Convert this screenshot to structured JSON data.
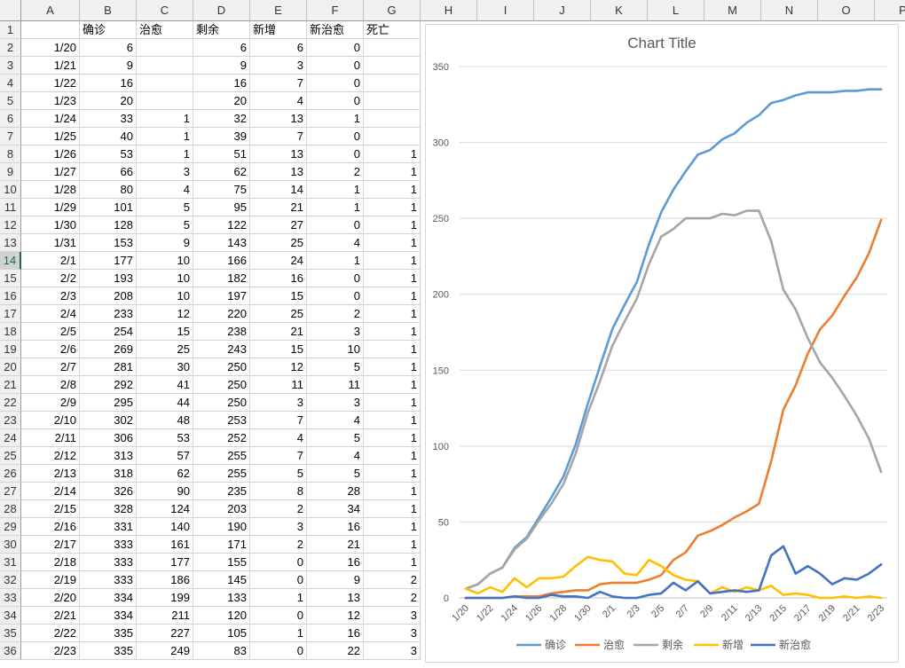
{
  "columns": [
    "A",
    "B",
    "C",
    "D",
    "E",
    "F",
    "G",
    "H",
    "I",
    "J",
    "K",
    "L",
    "M",
    "N",
    "O",
    "P"
  ],
  "selected_row": 14,
  "headers": {
    "A": "",
    "B": "确诊",
    "C": "治愈",
    "D": "剩余",
    "E": "新增",
    "F": "新治愈",
    "G": "死亡"
  },
  "rows": [
    {
      "date": "1/20",
      "b": "6",
      "c": "",
      "d": "6",
      "e": "6",
      "f": "0",
      "g": ""
    },
    {
      "date": "1/21",
      "b": "9",
      "c": "",
      "d": "9",
      "e": "3",
      "f": "0",
      "g": ""
    },
    {
      "date": "1/22",
      "b": "16",
      "c": "",
      "d": "16",
      "e": "7",
      "f": "0",
      "g": ""
    },
    {
      "date": "1/23",
      "b": "20",
      "c": "",
      "d": "20",
      "e": "4",
      "f": "0",
      "g": ""
    },
    {
      "date": "1/24",
      "b": "33",
      "c": "1",
      "d": "32",
      "e": "13",
      "f": "1",
      "g": ""
    },
    {
      "date": "1/25",
      "b": "40",
      "c": "1",
      "d": "39",
      "e": "7",
      "f": "0",
      "g": ""
    },
    {
      "date": "1/26",
      "b": "53",
      "c": "1",
      "d": "51",
      "e": "13",
      "f": "0",
      "g": "1"
    },
    {
      "date": "1/27",
      "b": "66",
      "c": "3",
      "d": "62",
      "e": "13",
      "f": "2",
      "g": "1"
    },
    {
      "date": "1/28",
      "b": "80",
      "c": "4",
      "d": "75",
      "e": "14",
      "f": "1",
      "g": "1"
    },
    {
      "date": "1/29",
      "b": "101",
      "c": "5",
      "d": "95",
      "e": "21",
      "f": "1",
      "g": "1"
    },
    {
      "date": "1/30",
      "b": "128",
      "c": "5",
      "d": "122",
      "e": "27",
      "f": "0",
      "g": "1"
    },
    {
      "date": "1/31",
      "b": "153",
      "c": "9",
      "d": "143",
      "e": "25",
      "f": "4",
      "g": "1"
    },
    {
      "date": "2/1",
      "b": "177",
      "c": "10",
      "d": "166",
      "e": "24",
      "f": "1",
      "g": "1"
    },
    {
      "date": "2/2",
      "b": "193",
      "c": "10",
      "d": "182",
      "e": "16",
      "f": "0",
      "g": "1"
    },
    {
      "date": "2/3",
      "b": "208",
      "c": "10",
      "d": "197",
      "e": "15",
      "f": "0",
      "g": "1"
    },
    {
      "date": "2/4",
      "b": "233",
      "c": "12",
      "d": "220",
      "e": "25",
      "f": "2",
      "g": "1"
    },
    {
      "date": "2/5",
      "b": "254",
      "c": "15",
      "d": "238",
      "e": "21",
      "f": "3",
      "g": "1"
    },
    {
      "date": "2/6",
      "b": "269",
      "c": "25",
      "d": "243",
      "e": "15",
      "f": "10",
      "g": "1"
    },
    {
      "date": "2/7",
      "b": "281",
      "c": "30",
      "d": "250",
      "e": "12",
      "f": "5",
      "g": "1"
    },
    {
      "date": "2/8",
      "b": "292",
      "c": "41",
      "d": "250",
      "e": "11",
      "f": "11",
      "g": "1"
    },
    {
      "date": "2/9",
      "b": "295",
      "c": "44",
      "d": "250",
      "e": "3",
      "f": "3",
      "g": "1"
    },
    {
      "date": "2/10",
      "b": "302",
      "c": "48",
      "d": "253",
      "e": "7",
      "f": "4",
      "g": "1"
    },
    {
      "date": "2/11",
      "b": "306",
      "c": "53",
      "d": "252",
      "e": "4",
      "f": "5",
      "g": "1"
    },
    {
      "date": "2/12",
      "b": "313",
      "c": "57",
      "d": "255",
      "e": "7",
      "f": "4",
      "g": "1"
    },
    {
      "date": "2/13",
      "b": "318",
      "c": "62",
      "d": "255",
      "e": "5",
      "f": "5",
      "g": "1"
    },
    {
      "date": "2/14",
      "b": "326",
      "c": "90",
      "d": "235",
      "e": "8",
      "f": "28",
      "g": "1"
    },
    {
      "date": "2/15",
      "b": "328",
      "c": "124",
      "d": "203",
      "e": "2",
      "f": "34",
      "g": "1"
    },
    {
      "date": "2/16",
      "b": "331",
      "c": "140",
      "d": "190",
      "e": "3",
      "f": "16",
      "g": "1"
    },
    {
      "date": "2/17",
      "b": "333",
      "c": "161",
      "d": "171",
      "e": "2",
      "f": "21",
      "g": "1"
    },
    {
      "date": "2/18",
      "b": "333",
      "c": "177",
      "d": "155",
      "e": "0",
      "f": "16",
      "g": "1"
    },
    {
      "date": "2/19",
      "b": "333",
      "c": "186",
      "d": "145",
      "e": "0",
      "f": "9",
      "g": "2"
    },
    {
      "date": "2/20",
      "b": "334",
      "c": "199",
      "d": "133",
      "e": "1",
      "f": "13",
      "g": "2"
    },
    {
      "date": "2/21",
      "b": "334",
      "c": "211",
      "d": "120",
      "e": "0",
      "f": "12",
      "g": "3"
    },
    {
      "date": "2/22",
      "b": "335",
      "c": "227",
      "d": "105",
      "e": "1",
      "f": "16",
      "g": "3"
    },
    {
      "date": "2/23",
      "b": "335",
      "c": "249",
      "d": "83",
      "e": "0",
      "f": "22",
      "g": "3"
    }
  ],
  "chart_data": {
    "type": "line",
    "title": "Chart Title",
    "x": [
      "1/20",
      "1/21",
      "1/22",
      "1/23",
      "1/24",
      "1/25",
      "1/26",
      "1/27",
      "1/28",
      "1/29",
      "1/30",
      "1/31",
      "2/1",
      "2/2",
      "2/3",
      "2/4",
      "2/5",
      "2/6",
      "2/7",
      "2/8",
      "2/9",
      "2/10",
      "2/11",
      "2/12",
      "2/13",
      "2/14",
      "2/15",
      "2/16",
      "2/17",
      "2/18",
      "2/19",
      "2/20",
      "2/21",
      "2/22",
      "2/23"
    ],
    "x_tick_labels": [
      "1/20",
      "1/22",
      "1/24",
      "1/26",
      "1/28",
      "1/30",
      "2/1",
      "2/3",
      "2/5",
      "2/7",
      "2/9",
      "2/11",
      "2/13",
      "2/15",
      "2/17",
      "2/19",
      "2/21",
      "2/23"
    ],
    "ylim": [
      0,
      350
    ],
    "y_ticks": [
      0,
      50,
      100,
      150,
      200,
      250,
      300,
      350
    ],
    "grid": true,
    "legend_position": "bottom",
    "series": [
      {
        "name": "确诊",
        "color": "#5b9bd5",
        "values": [
          6,
          9,
          16,
          20,
          33,
          40,
          53,
          66,
          80,
          101,
          128,
          153,
          177,
          193,
          208,
          233,
          254,
          269,
          281,
          292,
          295,
          302,
          306,
          313,
          318,
          326,
          328,
          331,
          333,
          333,
          333,
          334,
          334,
          335,
          335
        ]
      },
      {
        "name": "治愈",
        "color": "#ed7d31",
        "values": [
          0,
          0,
          0,
          0,
          1,
          1,
          1,
          3,
          4,
          5,
          5,
          9,
          10,
          10,
          10,
          12,
          15,
          25,
          30,
          41,
          44,
          48,
          53,
          57,
          62,
          90,
          124,
          140,
          161,
          177,
          186,
          199,
          211,
          227,
          249
        ]
      },
      {
        "name": "剩余",
        "color": "#a5a5a5",
        "values": [
          6,
          9,
          16,
          20,
          32,
          39,
          51,
          62,
          75,
          95,
          122,
          143,
          166,
          182,
          197,
          220,
          238,
          243,
          250,
          250,
          250,
          253,
          252,
          255,
          255,
          235,
          203,
          190,
          171,
          155,
          145,
          133,
          120,
          105,
          83
        ]
      },
      {
        "name": "新增",
        "color": "#ffc000",
        "values": [
          6,
          3,
          7,
          4,
          13,
          7,
          13,
          13,
          14,
          21,
          27,
          25,
          24,
          16,
          15,
          25,
          21,
          15,
          12,
          11,
          3,
          7,
          4,
          7,
          5,
          8,
          2,
          3,
          2,
          0,
          0,
          1,
          0,
          1,
          0
        ]
      },
      {
        "name": "新治愈",
        "color": "#4472c4",
        "values": [
          0,
          0,
          0,
          0,
          1,
          0,
          0,
          2,
          1,
          1,
          0,
          4,
          1,
          0,
          0,
          2,
          3,
          10,
          5,
          11,
          3,
          4,
          5,
          4,
          5,
          28,
          34,
          16,
          21,
          16,
          9,
          13,
          12,
          16,
          22
        ]
      }
    ]
  }
}
